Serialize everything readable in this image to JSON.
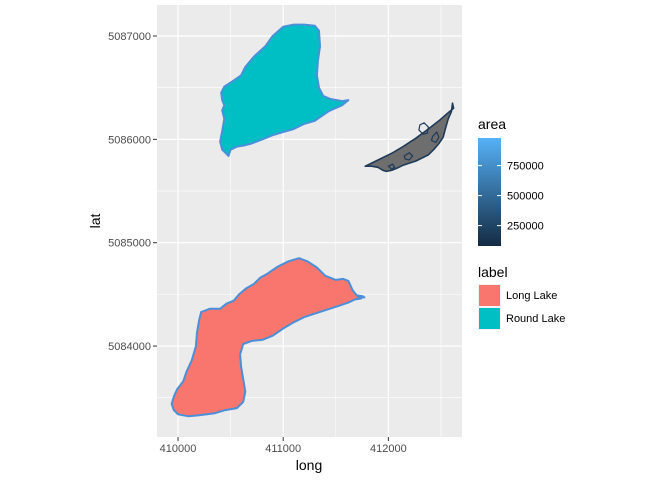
{
  "chart_data": {
    "type": "map",
    "title": "",
    "xlabel": "long",
    "ylabel": "lat",
    "xlim": [
      409800,
      412700
    ],
    "ylim": [
      5083120,
      5087300
    ],
    "x_ticks": [
      410000,
      411000,
      412000
    ],
    "x_tick_labels": [
      "410000",
      "411000",
      "412000"
    ],
    "y_ticks": [
      5084000,
      5085000,
      5086000,
      5087000
    ],
    "y_tick_labels": [
      "5084000",
      "5085000",
      "5086000",
      "5087000"
    ],
    "grid": true,
    "panel_background": "#ebebeb",
    "grid_color": "#ffffff",
    "shapes": [
      {
        "label": "Round Lake",
        "fill": "#00bfc4",
        "stroke": "#4a90d9",
        "points": [
          [
            410460,
            5085860
          ],
          [
            410480,
            5085840
          ],
          [
            410500,
            5085900
          ],
          [
            410560,
            5085930
          ],
          [
            410620,
            5085940
          ],
          [
            410700,
            5085960
          ],
          [
            410800,
            5086000
          ],
          [
            410900,
            5086040
          ],
          [
            411000,
            5086070
          ],
          [
            411100,
            5086100
          ],
          [
            411200,
            5086150
          ],
          [
            411300,
            5086180
          ],
          [
            411430,
            5086270
          ],
          [
            411560,
            5086330
          ],
          [
            411620,
            5086380
          ],
          [
            411560,
            5086370
          ],
          [
            411450,
            5086390
          ],
          [
            411380,
            5086420
          ],
          [
            411340,
            5086500
          ],
          [
            411320,
            5086620
          ],
          [
            411330,
            5086760
          ],
          [
            411350,
            5086900
          ],
          [
            411340,
            5087050
          ],
          [
            411300,
            5087100
          ],
          [
            411200,
            5087110
          ],
          [
            411100,
            5087110
          ],
          [
            411000,
            5087090
          ],
          [
            410900,
            5087000
          ],
          [
            410830,
            5086900
          ],
          [
            410720,
            5086800
          ],
          [
            410640,
            5086700
          ],
          [
            410600,
            5086620
          ],
          [
            410530,
            5086570
          ],
          [
            410440,
            5086510
          ],
          [
            410410,
            5086450
          ],
          [
            410420,
            5086380
          ],
          [
            410440,
            5086330
          ],
          [
            410420,
            5086280
          ],
          [
            410440,
            5086200
          ],
          [
            410420,
            5086080
          ],
          [
            410400,
            5085980
          ],
          [
            410420,
            5085900
          ]
        ]
      },
      {
        "label": "Long Lake",
        "fill": "#f8766d",
        "stroke": "#4a90d9",
        "points": [
          [
            409940,
            5083440
          ],
          [
            409960,
            5083380
          ],
          [
            410000,
            5083340
          ],
          [
            410100,
            5083320
          ],
          [
            410200,
            5083330
          ],
          [
            410350,
            5083350
          ],
          [
            410450,
            5083380
          ],
          [
            410560,
            5083400
          ],
          [
            410620,
            5083460
          ],
          [
            410640,
            5083560
          ],
          [
            410620,
            5083680
          ],
          [
            410600,
            5083800
          ],
          [
            410590,
            5083920
          ],
          [
            410620,
            5084020
          ],
          [
            410700,
            5084050
          ],
          [
            410800,
            5084060
          ],
          [
            410900,
            5084100
          ],
          [
            411000,
            5084170
          ],
          [
            411100,
            5084230
          ],
          [
            411200,
            5084280
          ],
          [
            411350,
            5084330
          ],
          [
            411500,
            5084380
          ],
          [
            411620,
            5084420
          ],
          [
            411680,
            5084450
          ],
          [
            411740,
            5084460
          ],
          [
            411760,
            5084480
          ],
          [
            411700,
            5084490
          ],
          [
            411660,
            5084540
          ],
          [
            411620,
            5084630
          ],
          [
            411570,
            5084650
          ],
          [
            411500,
            5084640
          ],
          [
            411400,
            5084680
          ],
          [
            411320,
            5084760
          ],
          [
            411230,
            5084820
          ],
          [
            411150,
            5084850
          ],
          [
            411050,
            5084820
          ],
          [
            410950,
            5084770
          ],
          [
            410850,
            5084700
          ],
          [
            410780,
            5084660
          ],
          [
            410720,
            5084600
          ],
          [
            410650,
            5084560
          ],
          [
            410580,
            5084500
          ],
          [
            410530,
            5084440
          ],
          [
            410460,
            5084410
          ],
          [
            410400,
            5084360
          ],
          [
            410300,
            5084360
          ],
          [
            410250,
            5084340
          ],
          [
            410220,
            5084330
          ],
          [
            410200,
            5084250
          ],
          [
            410180,
            5084130
          ],
          [
            410170,
            5084000
          ],
          [
            410130,
            5083860
          ],
          [
            410080,
            5083750
          ],
          [
            410050,
            5083660
          ],
          [
            409990,
            5083580
          ],
          [
            409960,
            5083510
          ]
        ]
      }
    ],
    "area_shapes": [
      {
        "fill": "#6e6e6e",
        "stroke": "#1f3b57",
        "outer": [
          [
            411780,
            5085740
          ],
          [
            411840,
            5085770
          ],
          [
            411940,
            5085820
          ],
          [
            412040,
            5085870
          ],
          [
            412140,
            5085930
          ],
          [
            412260,
            5086010
          ],
          [
            412380,
            5086100
          ],
          [
            412480,
            5086180
          ],
          [
            412560,
            5086250
          ],
          [
            412620,
            5086300
          ],
          [
            412610,
            5086350
          ],
          [
            412600,
            5086270
          ],
          [
            412570,
            5086200
          ],
          [
            412550,
            5086130
          ],
          [
            412520,
            5086020
          ],
          [
            412480,
            5085960
          ],
          [
            412430,
            5085900
          ],
          [
            412380,
            5085850
          ],
          [
            412320,
            5085820
          ],
          [
            412260,
            5085790
          ],
          [
            412200,
            5085770
          ],
          [
            412140,
            5085750
          ],
          [
            412080,
            5085720
          ],
          [
            412030,
            5085700
          ],
          [
            411980,
            5085690
          ],
          [
            411950,
            5085700
          ],
          [
            411900,
            5085730
          ],
          [
            411840,
            5085740
          ]
        ],
        "inner": [
          [
            [
              412300,
              5086140
            ],
            [
              412340,
              5086160
            ],
            [
              412380,
              5086120
            ],
            [
              412370,
              5086060
            ],
            [
              412330,
              5086050
            ],
            [
              412290,
              5086090
            ]
          ],
          [
            [
              412420,
              5086030
            ],
            [
              412460,
              5086070
            ],
            [
              412480,
              5086020
            ],
            [
              412450,
              5085970
            ],
            [
              412410,
              5085990
            ]
          ],
          [
            [
              412150,
              5085840
            ],
            [
              412200,
              5085870
            ],
            [
              412230,
              5085840
            ],
            [
              412200,
              5085800
            ],
            [
              412160,
              5085810
            ]
          ],
          [
            [
              412000,
              5085740
            ],
            [
              412040,
              5085760
            ],
            [
              412060,
              5085730
            ],
            [
              412030,
              5085710
            ]
          ]
        ]
      }
    ],
    "legend": {
      "area": {
        "title": "area",
        "breaks": [
          250000,
          500000,
          750000
        ],
        "labels": [
          "250000",
          "500000",
          "750000"
        ],
        "range": [
          80000,
          980000
        ],
        "low_color": "#132b43",
        "high_color": "#56b1f7"
      },
      "label": {
        "title": "label",
        "entries": [
          {
            "name": "Long Lake",
            "color": "#f8766d"
          },
          {
            "name": "Round Lake",
            "color": "#00bfc4"
          }
        ]
      }
    }
  }
}
